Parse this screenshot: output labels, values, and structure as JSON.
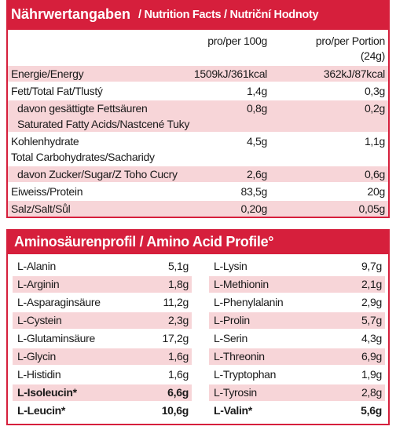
{
  "nutrition": {
    "title_main": "Nährwertangaben",
    "title_rest": "/ Nutrition Facts / Nutriční Hodnoty",
    "col_100g": "pro/per 100g",
    "col_portion": "pro/per Portion",
    "col_portion_size": "(24g)",
    "rows": [
      {
        "lines": [
          "Energie/Energy"
        ],
        "per_100g": "1509kJ/361kcal",
        "per_portion": "362kJ/87kcal",
        "shaded": true
      },
      {
        "lines": [
          "Fett/Total Fat/Tlustý"
        ],
        "per_100g": "1,4g",
        "per_portion": "0,3g",
        "shaded": false
      },
      {
        "lines": [
          "davon gesättigte Fettsäuren",
          "Saturated Fatty Acids/Nastcené Tuky"
        ],
        "per_100g": "0,8g",
        "per_portion": "0,2g",
        "shaded": true,
        "indent": true
      },
      {
        "lines": [
          "Kohlenhydrate",
          "Total Carbohydrates/Sacharidy"
        ],
        "per_100g": "4,5g",
        "per_portion": "1,1g",
        "shaded": false
      },
      {
        "lines": [
          "davon Zucker/Sugar/Z Toho Cucry"
        ],
        "per_100g": "2,6g",
        "per_portion": "0,6g",
        "shaded": true,
        "indent": true
      },
      {
        "lines": [
          "Eiweiss/Protein"
        ],
        "per_100g": "83,5g",
        "per_portion": "20g",
        "shaded": false
      },
      {
        "lines": [
          "Salz/Salt/Sůl"
        ],
        "per_100g": "0,20g",
        "per_portion": "0,05g",
        "shaded": true
      }
    ]
  },
  "amino": {
    "title": "Aminosäurenprofil / Amino Acid Profile°",
    "rows": [
      {
        "left": {
          "name": "L-Alanin",
          "value": "5,1g"
        },
        "right": {
          "name": "L-Lysin",
          "value": "9,7g"
        }
      },
      {
        "left": {
          "name": "L-Arginin",
          "value": "1,8g"
        },
        "right": {
          "name": "L-Methionin",
          "value": "2,1g"
        }
      },
      {
        "left": {
          "name": "L-Asparaginsäure",
          "value": "11,2g"
        },
        "right": {
          "name": "L-Phenylalanin",
          "value": "2,9g"
        }
      },
      {
        "left": {
          "name": "L-Cystein",
          "value": "2,3g"
        },
        "right": {
          "name": "L-Prolin",
          "value": "5,7g"
        }
      },
      {
        "left": {
          "name": "L-Glutaminsäure",
          "value": "17,2g"
        },
        "right": {
          "name": "L-Serin",
          "value": "4,3g"
        }
      },
      {
        "left": {
          "name": "L-Glycin",
          "value": "1,6g"
        },
        "right": {
          "name": "L-Threonin",
          "value": "6,9g"
        }
      },
      {
        "left": {
          "name": "L-Histidin",
          "value": "1,6g"
        },
        "right": {
          "name": "L-Tryptophan",
          "value": "1,9g"
        }
      },
      {
        "left": {
          "name": "L-Isoleucin*",
          "value": "6,6g",
          "bold": true
        },
        "right": {
          "name": "L-Tyrosin",
          "value": "2,8g"
        }
      },
      {
        "left": {
          "name": "L-Leucin*",
          "value": "10,6g",
          "bold": true
        },
        "right": {
          "name": "L-Valin*",
          "value": "5,6g",
          "bold": true
        }
      }
    ]
  }
}
